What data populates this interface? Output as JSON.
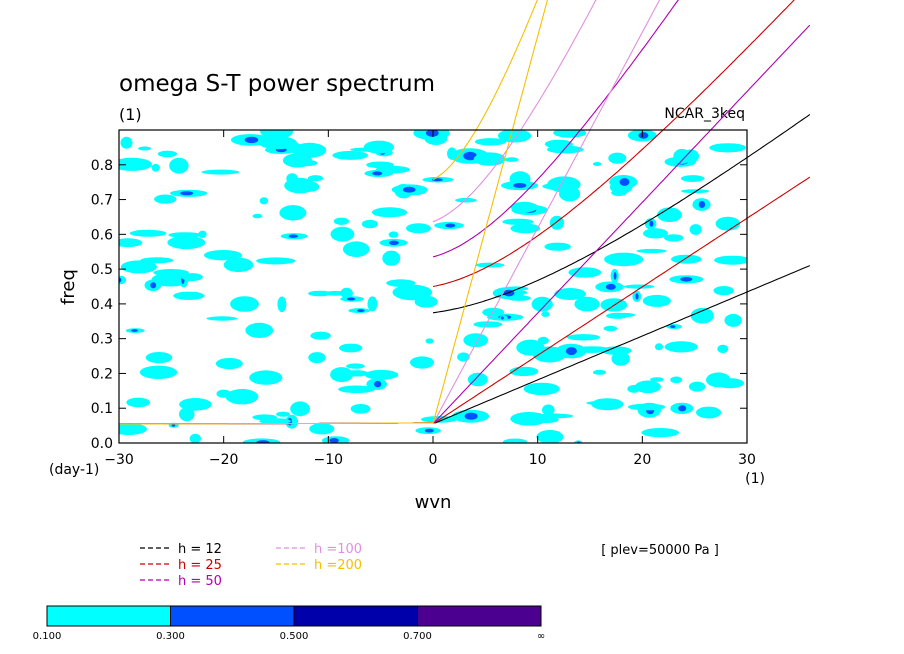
{
  "chart_data": {
    "type": "contour",
    "title": "omega S-T power spectrum",
    "subtitle_left": "(1)",
    "subtitle_right": "NCAR_3keq",
    "xlabel": "wvn",
    "ylabel": "freq",
    "x_unit_label": "(1)",
    "y_unit_label": "(day-1)",
    "xlim": [
      -30,
      30
    ],
    "ylim": [
      0,
      0.9
    ],
    "x_ticks": [
      "−30",
      "−20",
      "−10",
      "0",
      "10",
      "20",
      "30"
    ],
    "x_tick_values": [
      -30,
      -20,
      -10,
      0,
      10,
      20,
      30
    ],
    "y_ticks": [
      "0.0",
      "0.1",
      "0.2",
      "0.3",
      "0.4",
      "0.5",
      "0.6",
      "0.7",
      "0.8"
    ],
    "y_tick_values": [
      0,
      0.1,
      0.2,
      0.3,
      0.4,
      0.5,
      0.6,
      0.7,
      0.8
    ],
    "annotation": "[ plev=50000 Pa ]",
    "dispersion_curves": [
      {
        "name": "h = 12",
        "h": 12,
        "color": "#000000"
      },
      {
        "name": "h = 25",
        "h": 25,
        "color": "#cc0000"
      },
      {
        "name": "h = 50",
        "h": 50,
        "color": "#b000b0"
      },
      {
        "name": "h =100",
        "h": 100,
        "color": "#e090e0"
      },
      {
        "name": "h =200",
        "h": 200,
        "color": "#f5c000"
      }
    ],
    "colorbar": {
      "labels": [
        "0.100",
        "0.300",
        "0.500",
        "0.700",
        "∞"
      ],
      "colors": [
        "#00ffff",
        "#0050ff",
        "#0000aa",
        "#4b0090"
      ]
    },
    "contour_field_levels": [
      0.1,
      0.3,
      0.5,
      0.7
    ]
  }
}
